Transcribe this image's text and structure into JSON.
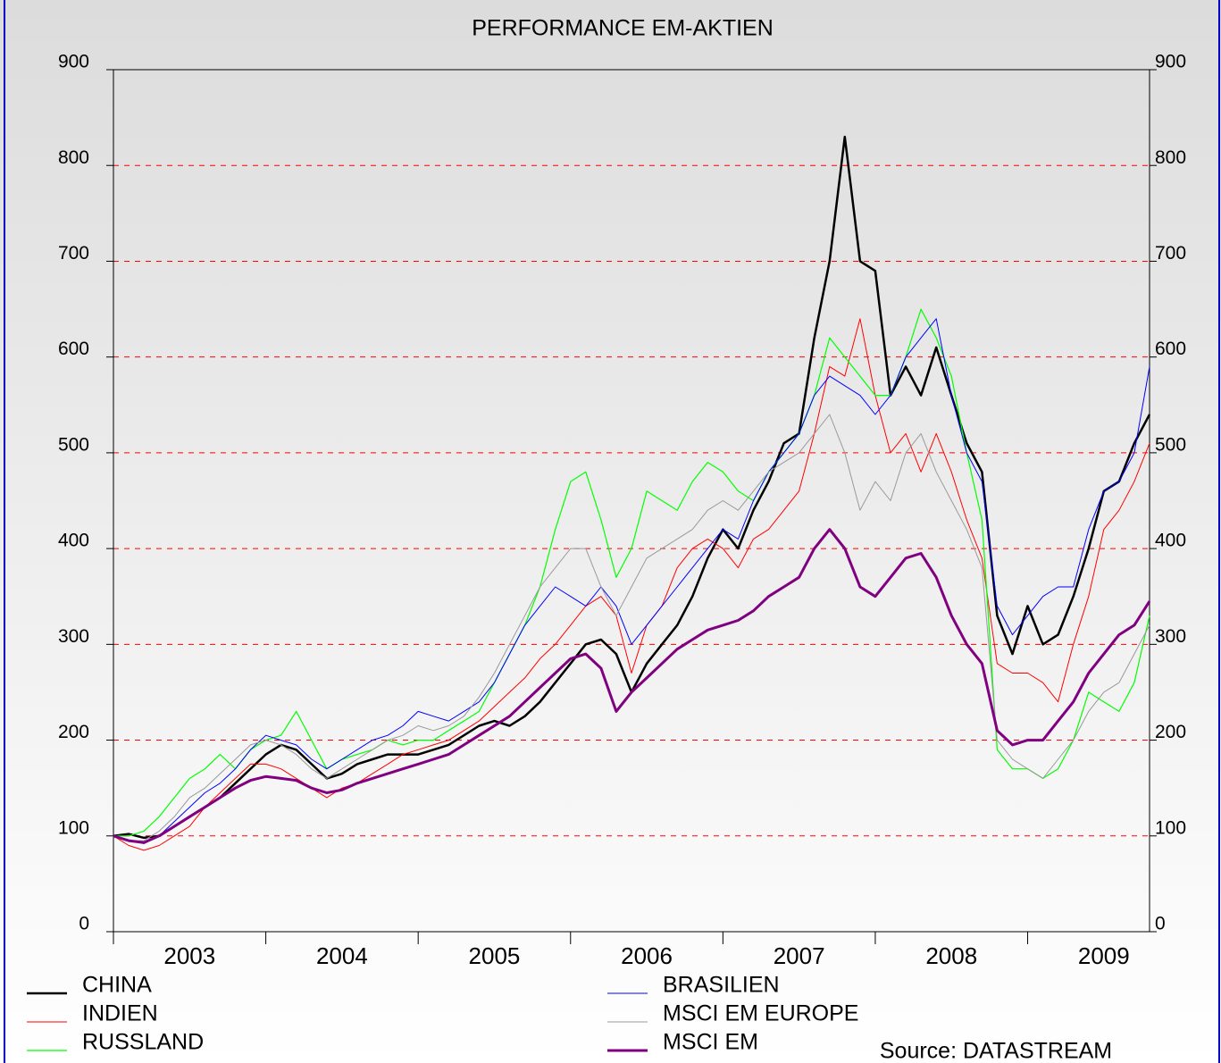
{
  "chart_data": {
    "type": "line",
    "title": "PERFORMANCE EM-AKTIEN",
    "source": "Source: DATASTREAM",
    "xlim": [
      2003,
      2009.8
    ],
    "xticks": [
      2003,
      2004,
      2005,
      2006,
      2007,
      2008,
      2009
    ],
    "ylim": [
      0,
      900
    ],
    "yticks": [
      0,
      100,
      200,
      300,
      400,
      500,
      600,
      700,
      800,
      900
    ],
    "grid": true,
    "grid_color": "#ff0000",
    "x": [
      2003.0,
      2003.1,
      2003.2,
      2003.3,
      2003.4,
      2003.5,
      2003.6,
      2003.7,
      2003.8,
      2003.9,
      2004.0,
      2004.1,
      2004.2,
      2004.3,
      2004.4,
      2004.5,
      2004.6,
      2004.7,
      2004.8,
      2004.9,
      2005.0,
      2005.1,
      2005.2,
      2005.3,
      2005.4,
      2005.5,
      2005.6,
      2005.7,
      2005.8,
      2005.9,
      2006.0,
      2006.1,
      2006.2,
      2006.3,
      2006.4,
      2006.5,
      2006.6,
      2006.7,
      2006.8,
      2006.9,
      2007.0,
      2007.1,
      2007.2,
      2007.3,
      2007.4,
      2007.5,
      2007.6,
      2007.7,
      2007.8,
      2007.9,
      2008.0,
      2008.1,
      2008.2,
      2008.3,
      2008.4,
      2008.5,
      2008.6,
      2008.7,
      2008.8,
      2008.9,
      2009.0,
      2009.1,
      2009.2,
      2009.3,
      2009.4,
      2009.5,
      2009.6,
      2009.7,
      2009.8
    ],
    "series": [
      {
        "name": "CHINA",
        "color": "#000000",
        "values": [
          100,
          102,
          98,
          100,
          110,
          120,
          130,
          140,
          155,
          170,
          185,
          195,
          190,
          175,
          160,
          165,
          175,
          180,
          185,
          185,
          185,
          190,
          195,
          205,
          215,
          220,
          215,
          225,
          240,
          260,
          280,
          300,
          305,
          290,
          250,
          280,
          300,
          320,
          350,
          390,
          420,
          400,
          440,
          470,
          510,
          520,
          620,
          700,
          830,
          700,
          690,
          560,
          590,
          560,
          610,
          560,
          510,
          480,
          330,
          290,
          340,
          300,
          310,
          350,
          400,
          460,
          470,
          510,
          540
        ]
      },
      {
        "name": "INDIEN",
        "color": "#ff0000",
        "values": [
          100,
          90,
          85,
          90,
          100,
          110,
          130,
          145,
          160,
          175,
          175,
          170,
          160,
          150,
          140,
          150,
          155,
          165,
          175,
          185,
          190,
          195,
          200,
          210,
          220,
          235,
          250,
          265,
          285,
          300,
          320,
          340,
          350,
          330,
          270,
          320,
          340,
          380,
          400,
          410,
          400,
          380,
          410,
          420,
          440,
          460,
          520,
          590,
          580,
          640,
          560,
          500,
          520,
          480,
          520,
          480,
          430,
          390,
          280,
          270,
          270,
          260,
          240,
          300,
          350,
          420,
          440,
          470,
          510
        ]
      },
      {
        "name": "RUSSLAND",
        "color": "#00ff00",
        "values": [
          100,
          100,
          105,
          120,
          140,
          160,
          170,
          185,
          170,
          190,
          200,
          205,
          230,
          200,
          170,
          180,
          185,
          190,
          200,
          195,
          200,
          200,
          210,
          220,
          230,
          260,
          290,
          320,
          360,
          420,
          470,
          480,
          430,
          370,
          400,
          460,
          450,
          440,
          470,
          490,
          480,
          460,
          450,
          480,
          500,
          520,
          560,
          620,
          600,
          580,
          560,
          560,
          600,
          650,
          620,
          580,
          500,
          430,
          190,
          170,
          170,
          160,
          170,
          200,
          250,
          240,
          230,
          260,
          330
        ]
      },
      {
        "name": "BRASILIEN",
        "color": "#0000ff",
        "values": [
          100,
          95,
          92,
          100,
          115,
          130,
          145,
          155,
          170,
          190,
          205,
          200,
          195,
          180,
          170,
          180,
          190,
          200,
          205,
          215,
          230,
          225,
          220,
          230,
          240,
          260,
          290,
          320,
          340,
          360,
          350,
          340,
          360,
          340,
          300,
          320,
          340,
          360,
          380,
          400,
          420,
          410,
          450,
          480,
          500,
          520,
          560,
          580,
          570,
          560,
          540,
          560,
          600,
          620,
          640,
          560,
          500,
          470,
          340,
          310,
          330,
          350,
          360,
          360,
          420,
          460,
          470,
          500,
          590
        ]
      },
      {
        "name": "MSCI EM EUROPE",
        "color": "#999999",
        "values": [
          100,
          95,
          95,
          105,
          120,
          140,
          150,
          165,
          180,
          195,
          200,
          195,
          185,
          170,
          160,
          170,
          180,
          190,
          200,
          205,
          215,
          210,
          215,
          225,
          245,
          270,
          300,
          330,
          360,
          380,
          400,
          400,
          360,
          330,
          360,
          390,
          400,
          410,
          420,
          440,
          450,
          440,
          460,
          480,
          490,
          500,
          520,
          540,
          500,
          440,
          470,
          450,
          500,
          520,
          480,
          450,
          420,
          380,
          200,
          180,
          170,
          160,
          180,
          200,
          230,
          250,
          260,
          290,
          320
        ]
      },
      {
        "name": "MSCI EM",
        "color": "#800080",
        "values": [
          100,
          95,
          93,
          100,
          110,
          120,
          130,
          140,
          150,
          158,
          162,
          160,
          158,
          150,
          145,
          148,
          155,
          160,
          165,
          170,
          175,
          180,
          185,
          195,
          205,
          215,
          225,
          240,
          255,
          270,
          285,
          290,
          275,
          230,
          250,
          265,
          280,
          295,
          305,
          315,
          320,
          325,
          335,
          350,
          360,
          370,
          400,
          420,
          400,
          360,
          350,
          370,
          390,
          395,
          370,
          330,
          300,
          280,
          210,
          195,
          200,
          200,
          220,
          240,
          270,
          290,
          310,
          320,
          345
        ]
      }
    ]
  }
}
